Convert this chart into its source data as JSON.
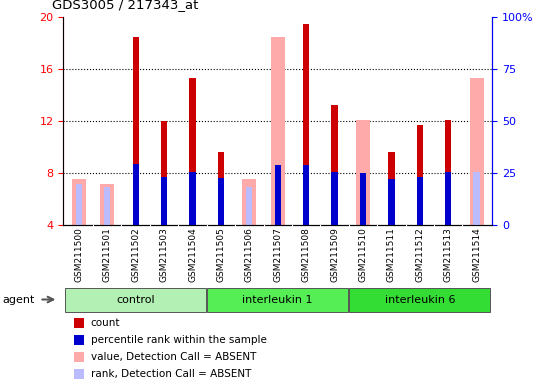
{
  "title": "GDS3005 / 217343_at",
  "samples": [
    "GSM211500",
    "GSM211501",
    "GSM211502",
    "GSM211503",
    "GSM211504",
    "GSM211505",
    "GSM211506",
    "GSM211507",
    "GSM211508",
    "GSM211509",
    "GSM211510",
    "GSM211511",
    "GSM211512",
    "GSM211513",
    "GSM211514"
  ],
  "groups": [
    {
      "name": "control",
      "color": "#b3f0b3",
      "start": 0,
      "end": 4
    },
    {
      "name": "interleukin 1",
      "color": "#55ee55",
      "start": 5,
      "end": 9
    },
    {
      "name": "interleukin 6",
      "color": "#33dd33",
      "start": 10,
      "end": 14
    }
  ],
  "count_values": [
    null,
    null,
    18.5,
    12.0,
    15.3,
    9.6,
    null,
    null,
    19.5,
    13.2,
    null,
    9.6,
    11.7,
    12.1,
    null
  ],
  "count_absent": [
    7.5,
    7.1,
    null,
    null,
    null,
    null,
    null,
    null,
    null,
    null,
    null,
    null,
    null,
    null,
    null
  ],
  "rank_values": [
    null,
    null,
    8.7,
    7.7,
    8.1,
    7.6,
    null,
    8.6,
    8.6,
    8.1,
    8.0,
    7.5,
    7.7,
    8.1,
    null
  ],
  "rank_absent": [
    7.1,
    6.9,
    null,
    null,
    null,
    null,
    6.9,
    8.4,
    null,
    null,
    null,
    null,
    null,
    null,
    8.1
  ],
  "value_absent": [
    null,
    null,
    null,
    null,
    null,
    null,
    7.5,
    18.5,
    null,
    null,
    12.1,
    null,
    null,
    null,
    15.3
  ],
  "ylim_left": [
    4,
    20
  ],
  "ylim_right": [
    0,
    100
  ],
  "yticks_left": [
    4,
    8,
    12,
    16,
    20
  ],
  "yticks_right": [
    0,
    25,
    50,
    75,
    100
  ],
  "bar_color_count": "#cc0000",
  "bar_color_rank": "#0000cc",
  "bar_color_absent_value": "#ffaaaa",
  "bar_color_absent_rank": "#bbbbff",
  "bg_plot": "#ffffff",
  "bg_xtick": "#cccccc",
  "legend_labels": [
    "count",
    "percentile rank within the sample",
    "value, Detection Call = ABSENT",
    "rank, Detection Call = ABSENT"
  ],
  "legend_colors": [
    "#cc0000",
    "#0000cc",
    "#ffaaaa",
    "#bbbbff"
  ]
}
